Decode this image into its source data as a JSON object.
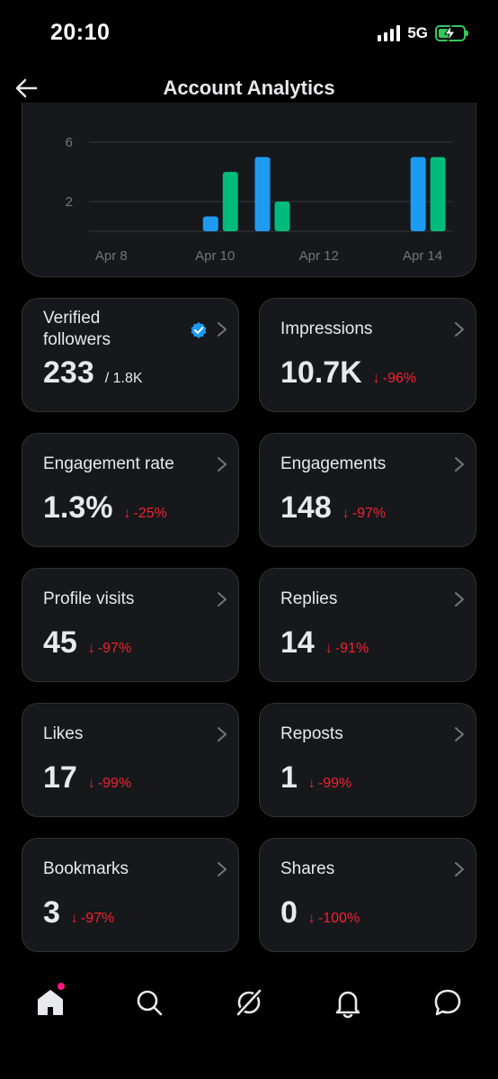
{
  "status": {
    "time": "20:10",
    "network": "5G"
  },
  "header": {
    "title": "Account Analytics"
  },
  "chart_data": {
    "type": "bar",
    "categories": [
      "Apr 8",
      "Apr 9",
      "Apr 10",
      "Apr 11",
      "Apr 12",
      "Apr 13",
      "Apr 14"
    ],
    "x_tick_labels": [
      "Apr 8",
      "Apr 10",
      "Apr 12",
      "Apr 14"
    ],
    "y_tick_labels": [
      "6",
      "2"
    ],
    "ylim": [
      0,
      6
    ],
    "grid": true,
    "series": [
      {
        "color": "#1d9bf0",
        "values": [
          0,
          0,
          1,
          5,
          0,
          0,
          5
        ]
      },
      {
        "color": "#00ba7c",
        "values": [
          0,
          0,
          4,
          2,
          0,
          0,
          5
        ]
      }
    ]
  },
  "metrics": [
    {
      "label": "Verified followers",
      "value": "233",
      "total": "/ 1.8K",
      "delta": ""
    },
    {
      "label": "Impressions",
      "value": "10.7K",
      "delta": "-96%"
    },
    {
      "label": "Engagement rate",
      "value": "1.3%",
      "delta": "-25%"
    },
    {
      "label": "Engagements",
      "value": "148",
      "delta": "-97%"
    },
    {
      "label": "Profile visits",
      "value": "45",
      "delta": "-97%"
    },
    {
      "label": "Replies",
      "value": "14",
      "delta": "-91%"
    },
    {
      "label": "Likes",
      "value": "17",
      "delta": "-99%"
    },
    {
      "label": "Reposts",
      "value": "1",
      "delta": "-99%"
    },
    {
      "label": "Bookmarks",
      "value": "3",
      "delta": "-97%"
    },
    {
      "label": "Shares",
      "value": "0",
      "delta": "-100%"
    }
  ],
  "colors": {
    "down": "#f4212e",
    "verified": "#1d9bf0",
    "notification_dot": "#f91880"
  },
  "tabbar": {
    "items": [
      "home-icon",
      "search-icon",
      "grok-icon",
      "notifications-icon",
      "messages-icon"
    ]
  }
}
